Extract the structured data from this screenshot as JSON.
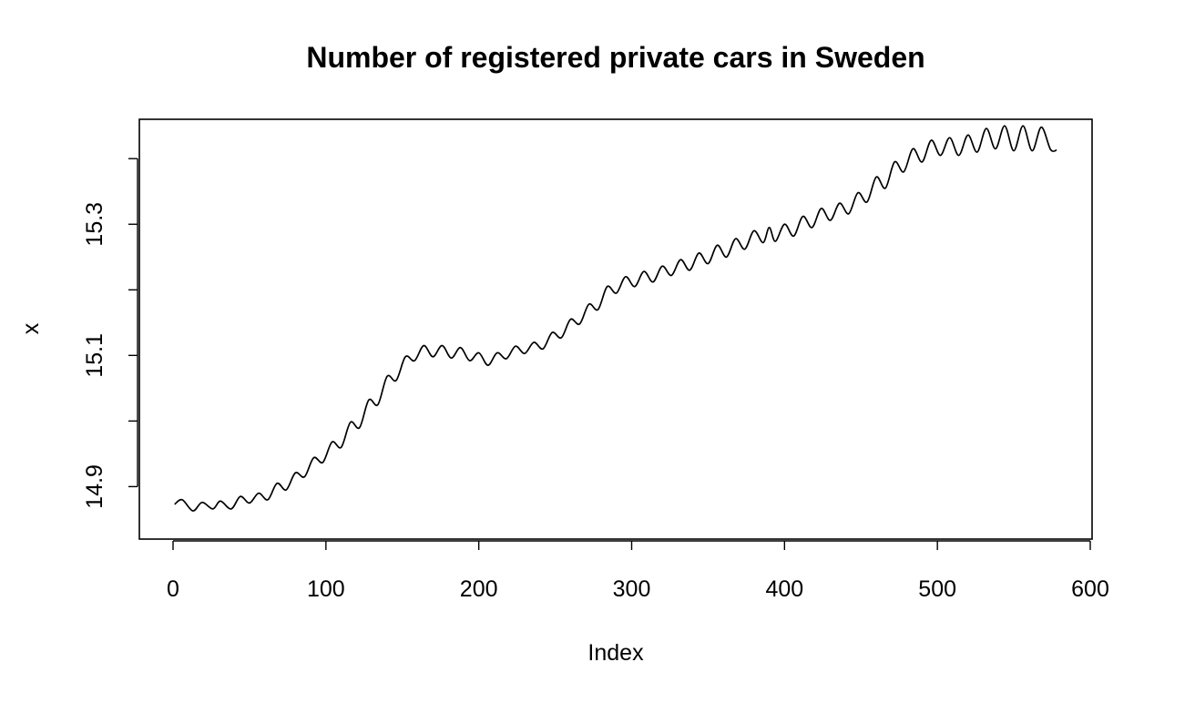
{
  "chart_data": {
    "type": "line",
    "title": "Number of registered private cars in Sweden",
    "xlabel": "Index",
    "ylabel": "x",
    "xlim": [
      0,
      600
    ],
    "ylim": [
      14.82,
      15.46
    ],
    "x_ticks": [
      0,
      100,
      200,
      300,
      400,
      500,
      600
    ],
    "x_tick_labels": [
      "0",
      "100",
      "200",
      "300",
      "400",
      "500",
      "600"
    ],
    "y_ticks": [
      14.9,
      15.0,
      15.1,
      15.2,
      15.3,
      15.4
    ],
    "y_tick_labels": [
      "14.9",
      "",
      "15.1",
      "",
      "15.3",
      ""
    ],
    "grid": false,
    "legend": "none",
    "series": [
      {
        "line_color": "#000000",
        "points": [
          [
            1,
            14.873
          ],
          [
            6,
            14.88
          ],
          [
            13,
            14.863
          ],
          [
            19,
            14.876
          ],
          [
            26,
            14.866
          ],
          [
            31,
            14.878
          ],
          [
            38,
            14.866
          ],
          [
            44,
            14.885
          ],
          [
            50,
            14.875
          ],
          [
            56,
            14.89
          ],
          [
            62,
            14.88
          ],
          [
            68,
            14.905
          ],
          [
            74,
            14.895
          ],
          [
            80,
            14.921
          ],
          [
            86,
            14.915
          ],
          [
            92,
            14.944
          ],
          [
            98,
            14.937
          ],
          [
            104,
            14.968
          ],
          [
            110,
            14.96
          ],
          [
            116,
            14.998
          ],
          [
            122,
            14.99
          ],
          [
            128,
            15.032
          ],
          [
            134,
            15.025
          ],
          [
            140,
            15.068
          ],
          [
            146,
            15.062
          ],
          [
            152,
            15.098
          ],
          [
            158,
            15.092
          ],
          [
            164,
            15.115
          ],
          [
            170,
            15.098
          ],
          [
            176,
            15.115
          ],
          [
            182,
            15.096
          ],
          [
            188,
            15.112
          ],
          [
            194,
            15.092
          ],
          [
            200,
            15.104
          ],
          [
            206,
            15.085
          ],
          [
            212,
            15.104
          ],
          [
            218,
            15.095
          ],
          [
            224,
            15.114
          ],
          [
            230,
            15.103
          ],
          [
            236,
            15.12
          ],
          [
            242,
            15.11
          ],
          [
            248,
            15.135
          ],
          [
            254,
            15.127
          ],
          [
            260,
            15.155
          ],
          [
            266,
            15.148
          ],
          [
            272,
            15.178
          ],
          [
            278,
            15.17
          ],
          [
            284,
            15.205
          ],
          [
            290,
            15.195
          ],
          [
            296,
            15.22
          ],
          [
            302,
            15.205
          ],
          [
            308,
            15.228
          ],
          [
            314,
            15.212
          ],
          [
            320,
            15.236
          ],
          [
            326,
            15.222
          ],
          [
            332,
            15.246
          ],
          [
            338,
            15.23
          ],
          [
            344,
            15.256
          ],
          [
            350,
            15.24
          ],
          [
            356,
            15.268
          ],
          [
            362,
            15.25
          ],
          [
            368,
            15.278
          ],
          [
            374,
            15.262
          ],
          [
            380,
            15.29
          ],
          [
            386,
            15.272
          ],
          [
            390,
            15.295
          ],
          [
            394,
            15.274
          ],
          [
            400,
            15.3
          ],
          [
            406,
            15.282
          ],
          [
            412,
            15.312
          ],
          [
            418,
            15.295
          ],
          [
            424,
            15.324
          ],
          [
            430,
            15.306
          ],
          [
            436,
            15.332
          ],
          [
            442,
            15.316
          ],
          [
            448,
            15.348
          ],
          [
            454,
            15.334
          ],
          [
            460,
            15.372
          ],
          [
            466,
            15.355
          ],
          [
            472,
            15.395
          ],
          [
            478,
            15.38
          ],
          [
            484,
            15.415
          ],
          [
            490,
            15.395
          ],
          [
            496,
            15.428
          ],
          [
            502,
            15.405
          ],
          [
            508,
            15.432
          ],
          [
            514,
            15.405
          ],
          [
            520,
            15.436
          ],
          [
            526,
            15.41
          ],
          [
            532,
            15.446
          ],
          [
            538,
            15.415
          ],
          [
            544,
            15.45
          ],
          [
            550,
            15.412
          ],
          [
            556,
            15.45
          ],
          [
            562,
            15.412
          ],
          [
            568,
            15.448
          ],
          [
            574,
            15.414
          ],
          [
            578,
            15.413
          ]
        ]
      }
    ]
  }
}
